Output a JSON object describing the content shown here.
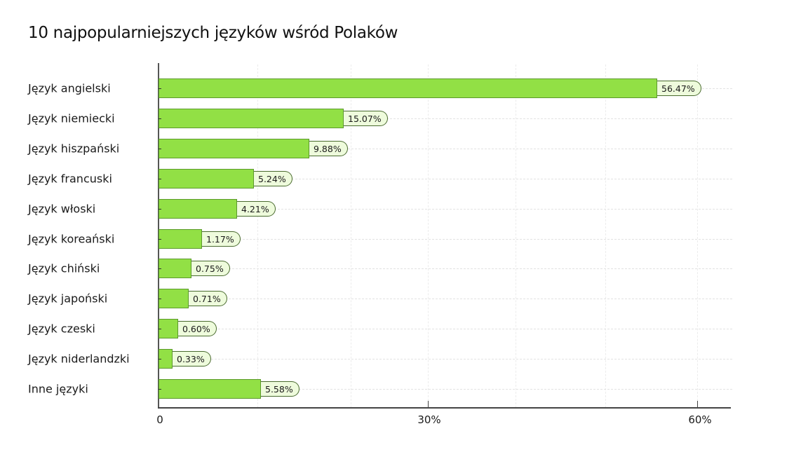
{
  "title": "10 najpopularniejszych języków wśród Polaków",
  "colors": {
    "bar": "#92e045",
    "bar_border": "#5c9a2c",
    "label_bg": "#eefbdc"
  },
  "axis": {
    "x_ticks": [
      "0",
      "30%",
      "60%"
    ]
  },
  "chart_data": {
    "type": "bar",
    "orientation": "horizontal",
    "title": "10 najpopularniejszych języków wśród Polaków",
    "xlabel": "",
    "ylabel": "",
    "xlim": [
      0,
      64
    ],
    "x_tick_labels": [
      "0",
      "30%",
      "60%"
    ],
    "grid": true,
    "legend": null,
    "categories": [
      "Język angielski",
      "Język niemiecki",
      "Język hiszpański",
      "Język francuski",
      "Język włoski",
      "Język koreański",
      "Język chiński",
      "Język japoński",
      "Język czeski",
      "Język niderlandzki",
      "Inne języki"
    ],
    "values": [
      56.47,
      15.07,
      9.88,
      5.24,
      4.21,
      1.17,
      0.75,
      0.71,
      0.6,
      0.33,
      5.58
    ],
    "value_labels": [
      "56.47%",
      "15.07%",
      "9.88%",
      "5.24%",
      "4.21%",
      "1.17%",
      "0.75%",
      "0.71%",
      "0.60%",
      "0.33%",
      "5.58%"
    ]
  },
  "rows": [
    {
      "label": "Język angielski",
      "value_label": "56.47%"
    },
    {
      "label": "Język niemiecki",
      "value_label": "15.07%"
    },
    {
      "label": "Język hiszpański",
      "value_label": "9.88%"
    },
    {
      "label": "Język francuski",
      "value_label": "5.24%"
    },
    {
      "label": "Język włoski",
      "value_label": "4.21%"
    },
    {
      "label": "Język koreański",
      "value_label": "1.17%"
    },
    {
      "label": "Język chiński",
      "value_label": "0.75%"
    },
    {
      "label": "Język japoński",
      "value_label": "0.71%"
    },
    {
      "label": "Język czeski",
      "value_label": "0.60%"
    },
    {
      "label": "Język niderlandzki",
      "value_label": "0.33%"
    },
    {
      "label": "Inne języki",
      "value_label": "5.58%"
    }
  ]
}
